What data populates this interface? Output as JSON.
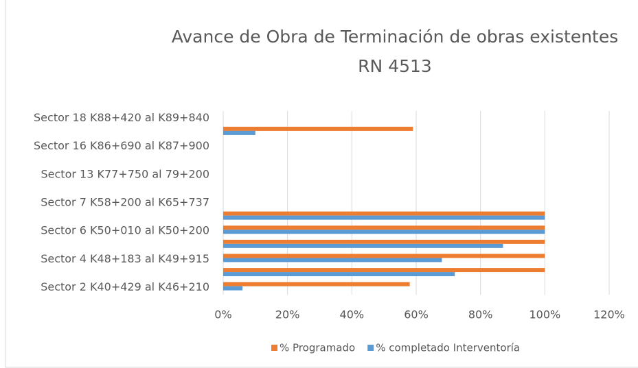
{
  "chart_data": {
    "type": "hbar",
    "title": [
      "Avance de Obra de Terminación de obras existentes",
      "RN 4513"
    ],
    "categories": [
      "Sector 2 K40+429 al K46+210",
      null,
      "Sector 4 K48+183 al K49+915",
      null,
      "Sector 6 K50+010 al K50+200",
      null,
      "Sector 7 K58+200 al K65+737",
      null,
      "Sector 13 K77+750 al 79+200",
      null,
      "Sector 16 K86+690 al K87+900",
      null,
      "Sector 18 K88+420 al K89+840"
    ],
    "series": [
      {
        "name": "% Programado",
        "color": "#ED7D31",
        "values": [
          58,
          100,
          100,
          100,
          100,
          100,
          null,
          null,
          null,
          null,
          null,
          59,
          null
        ]
      },
      {
        "name": "% completado Interventoría",
        "color": "#5B9BD5",
        "values": [
          6,
          72,
          68,
          87,
          100,
          100,
          null,
          null,
          null,
          null,
          null,
          10,
          null
        ]
      }
    ],
    "xlim": [
      0,
      120
    ],
    "xticks": [
      {
        "value": 0,
        "label": "0%"
      },
      {
        "value": 20,
        "label": "20%"
      },
      {
        "value": 40,
        "label": "40%"
      },
      {
        "value": 60,
        "label": "60%"
      },
      {
        "value": 80,
        "label": "80%"
      },
      {
        "value": 100,
        "label": "100%"
      },
      {
        "value": 120,
        "label": "120%"
      }
    ],
    "grid": true,
    "legend": "bottom"
  }
}
